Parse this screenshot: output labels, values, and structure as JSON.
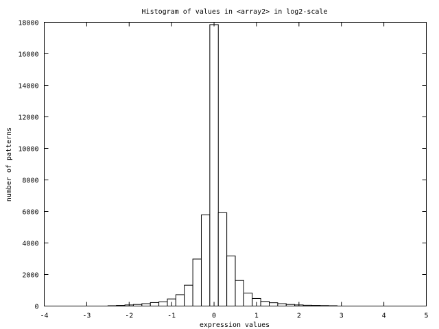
{
  "chart_data": {
    "type": "bar",
    "title": "Histogram of values in <array2> in log2-scale",
    "xlabel": "expression values",
    "ylabel": "number of patterns",
    "xlim": [
      -4,
      5
    ],
    "ylim": [
      0,
      18000
    ],
    "xticks": [
      -4,
      -3,
      -2,
      -1,
      0,
      1,
      2,
      3,
      4,
      5
    ],
    "yticks": [
      0,
      2000,
      4000,
      6000,
      8000,
      10000,
      12000,
      14000,
      16000,
      18000
    ],
    "grid": false,
    "legend": "none",
    "bin_width": 0.2,
    "bars": [
      {
        "x": -2.4,
        "value": 20
      },
      {
        "x": -2.2,
        "value": 40
      },
      {
        "x": -2.0,
        "value": 70
      },
      {
        "x": -1.8,
        "value": 100
      },
      {
        "x": -1.6,
        "value": 150
      },
      {
        "x": -1.4,
        "value": 220
      },
      {
        "x": -1.2,
        "value": 270
      },
      {
        "x": -1.0,
        "value": 450
      },
      {
        "x": -0.8,
        "value": 720
      },
      {
        "x": -0.6,
        "value": 1320
      },
      {
        "x": -0.4,
        "value": 2980
      },
      {
        "x": -0.2,
        "value": 5780
      },
      {
        "x": 0.0,
        "value": 17850
      },
      {
        "x": 0.2,
        "value": 5920
      },
      {
        "x": 0.4,
        "value": 3180
      },
      {
        "x": 0.6,
        "value": 1620
      },
      {
        "x": 0.8,
        "value": 820
      },
      {
        "x": 1.0,
        "value": 480
      },
      {
        "x": 1.2,
        "value": 290
      },
      {
        "x": 1.4,
        "value": 210
      },
      {
        "x": 1.6,
        "value": 150
      },
      {
        "x": 1.8,
        "value": 100
      },
      {
        "x": 2.0,
        "value": 70
      },
      {
        "x": 2.2,
        "value": 50
      },
      {
        "x": 2.4,
        "value": 40
      },
      {
        "x": 2.6,
        "value": 30
      },
      {
        "x": 2.8,
        "value": 20
      }
    ],
    "colors": {
      "bar_fill": "#ffffff",
      "bar_stroke": "#000000",
      "axis": "#000000"
    }
  }
}
